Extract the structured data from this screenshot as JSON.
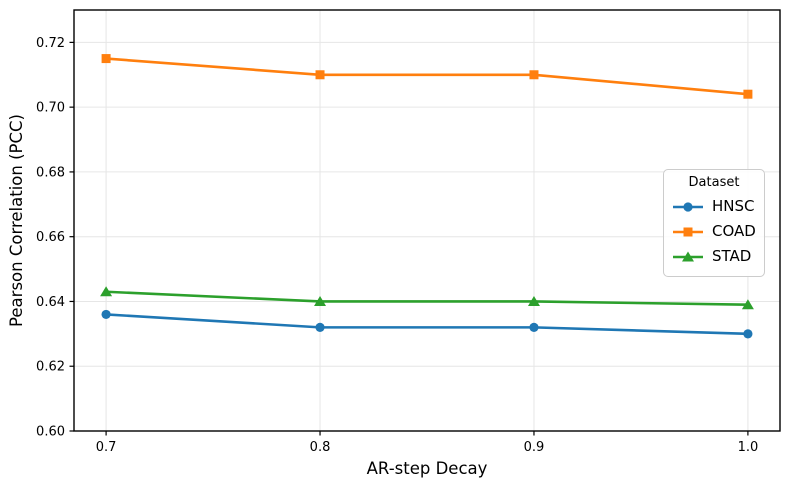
{
  "chart_data": {
    "type": "line",
    "title": "",
    "xlabel": "AR-step Decay",
    "ylabel": "Pearson Correlation (PCC)",
    "x": [
      0.7,
      0.8,
      0.9,
      1.0
    ],
    "xtick_labels": [
      "0.7",
      "0.8",
      "0.9",
      "1.0"
    ],
    "ytick_values": [
      0.6,
      0.62,
      0.64,
      0.66,
      0.68,
      0.7,
      0.72
    ],
    "ytick_labels": [
      "0.60",
      "0.62",
      "0.64",
      "0.66",
      "0.68",
      "0.70",
      "0.72"
    ],
    "xlim": [
      0.685,
      1.015
    ],
    "ylim": [
      0.6,
      0.73
    ],
    "grid": true,
    "legend": {
      "title": "Dataset",
      "position": "center right"
    },
    "series": [
      {
        "name": "HNSC",
        "color": "#1f77b4",
        "marker": "circle",
        "values": [
          0.636,
          0.632,
          0.632,
          0.63
        ]
      },
      {
        "name": "COAD",
        "color": "#ff7f0e",
        "marker": "square",
        "values": [
          0.715,
          0.71,
          0.71,
          0.704
        ]
      },
      {
        "name": "STAD",
        "color": "#2ca02c",
        "marker": "triangle",
        "values": [
          0.643,
          0.64,
          0.64,
          0.639
        ]
      }
    ]
  },
  "colors": {
    "background": "#ffffff",
    "grid": "#e6e6e6",
    "spine": "#000000",
    "text": "#000000"
  }
}
